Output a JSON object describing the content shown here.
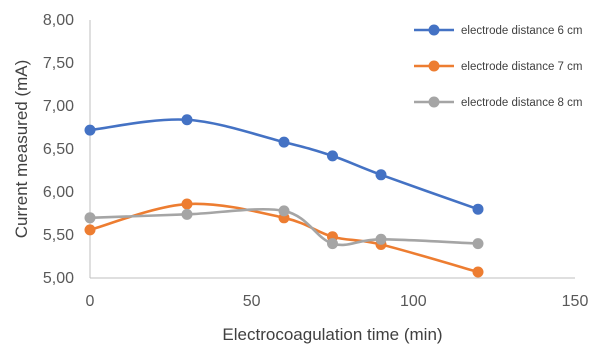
{
  "chart_data": {
    "type": "line",
    "title": "",
    "xlabel": "Electrocoagulation time (min)",
    "ylabel": "Current measured (mA)",
    "xlim": [
      0,
      150
    ],
    "ylim": [
      5.0,
      8.0
    ],
    "x_ticks": [
      0,
      50,
      100,
      150
    ],
    "x_tick_labels": [
      "0",
      "50",
      "100",
      "150"
    ],
    "y_ticks": [
      5.0,
      5.5,
      6.0,
      6.5,
      7.0,
      7.5,
      8.0
    ],
    "y_tick_labels": [
      "5,00",
      "5,50",
      "6,00",
      "6,50",
      "7,00",
      "7,50",
      "8,00"
    ],
    "grid": false,
    "legend_position": "top-right",
    "x": [
      0,
      30,
      60,
      75,
      90,
      120
    ],
    "series": [
      {
        "name": "electrode distance 6 cm",
        "color": "#4472C4",
        "values": [
          6.72,
          6.84,
          6.58,
          6.42,
          6.2,
          5.8
        ]
      },
      {
        "name": "electrode distance 7 cm",
        "color": "#ED7D31",
        "values": [
          5.56,
          5.86,
          5.7,
          5.48,
          5.39,
          5.07
        ]
      },
      {
        "name": "electrode distance 8 cm",
        "color": "#A5A5A5",
        "values": [
          5.7,
          5.74,
          5.78,
          5.4,
          5.45,
          5.4
        ]
      }
    ]
  }
}
